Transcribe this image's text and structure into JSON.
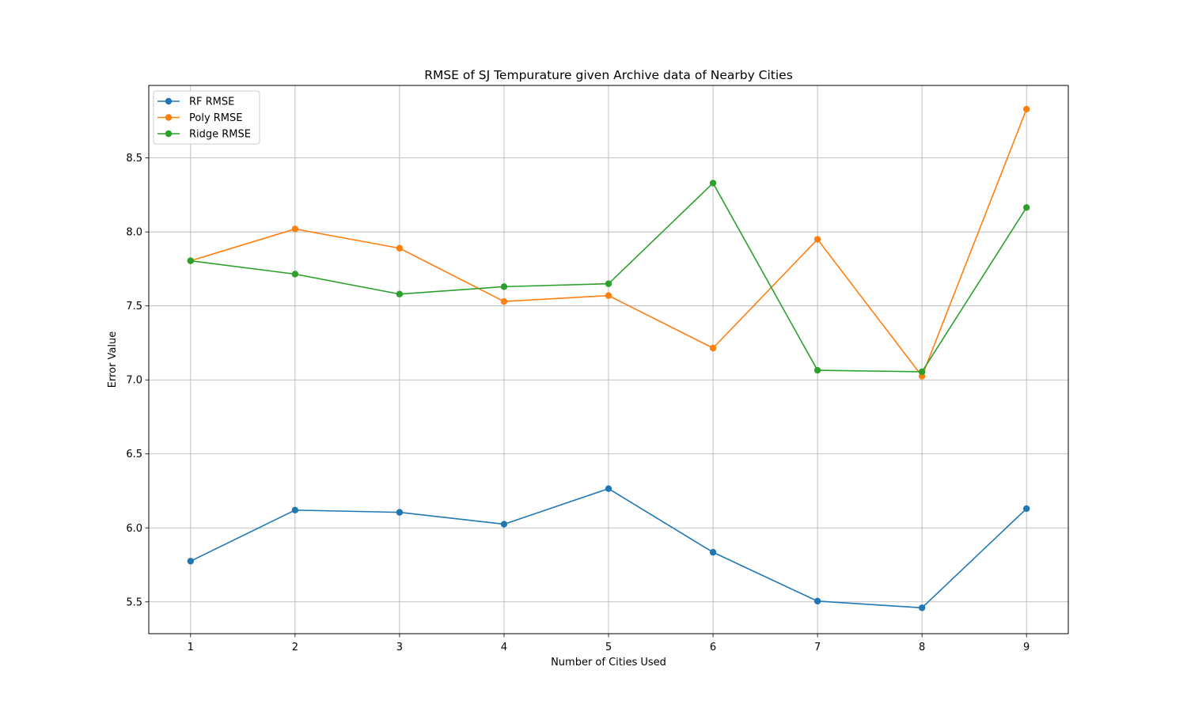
{
  "chart_data": {
    "type": "line",
    "title": "RMSE of SJ Tempurature given Archive data of Nearby Cities",
    "xlabel": "Number of Cities Used",
    "ylabel": "Error Value",
    "x": [
      1,
      2,
      3,
      4,
      5,
      6,
      7,
      8,
      9
    ],
    "xticks": [
      "1",
      "2",
      "3",
      "4",
      "5",
      "6",
      "7",
      "8",
      "9"
    ],
    "yticks": [
      "5.5",
      "6.0",
      "6.5",
      "7.0",
      "7.5",
      "8.0",
      "8.5"
    ],
    "xlim": [
      0.6,
      9.4
    ],
    "ylim": [
      5.285,
      8.99
    ],
    "grid": true,
    "legend_position": "top-left",
    "series": [
      {
        "name": "RF RMSE",
        "color": "#1f77b4",
        "values": [
          5.775,
          6.12,
          6.105,
          6.025,
          6.265,
          5.835,
          5.505,
          5.46,
          6.13
        ]
      },
      {
        "name": "Poly RMSE",
        "color": "#ff7f0e",
        "values": [
          7.805,
          8.02,
          7.89,
          7.53,
          7.57,
          7.215,
          7.95,
          7.025,
          8.83
        ]
      },
      {
        "name": "Ridge RMSE",
        "color": "#2ca02c",
        "values": [
          7.805,
          7.715,
          7.58,
          7.63,
          7.65,
          8.33,
          7.065,
          7.055,
          8.165
        ]
      }
    ]
  }
}
